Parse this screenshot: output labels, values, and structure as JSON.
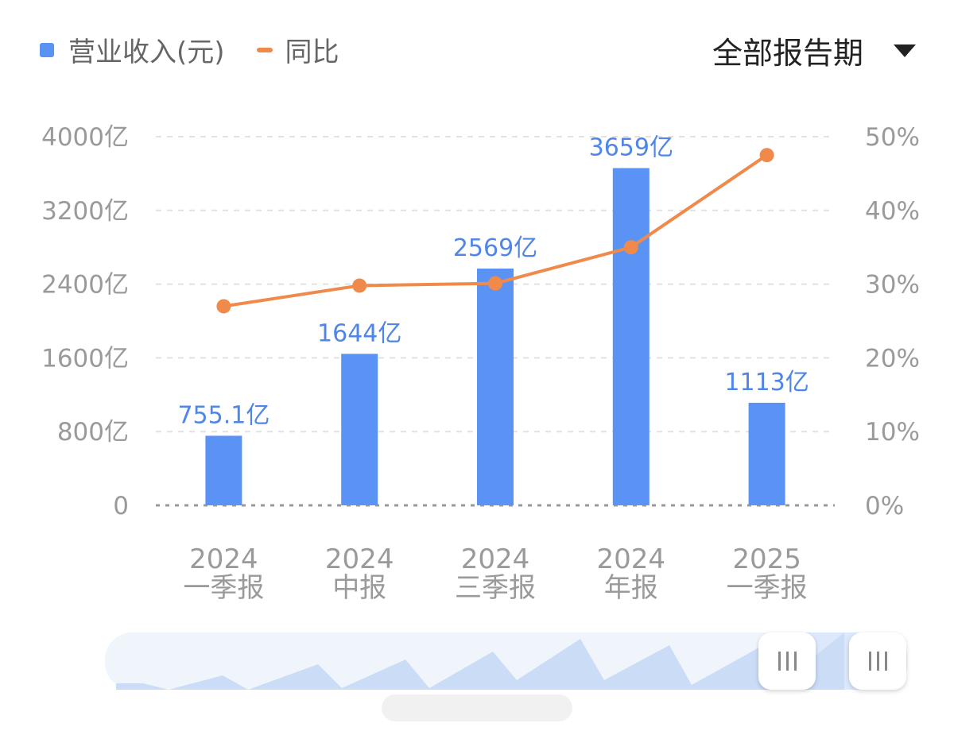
{
  "legend": {
    "bar_label": "营业收入(元)",
    "line_label": "同比",
    "bar_color": "#5b93f5",
    "line_color": "#f08a4b"
  },
  "period_selector": {
    "label": "全部报告期"
  },
  "chart_data": {
    "type": "bar",
    "categories": [
      [
        "2024",
        "一季报"
      ],
      [
        "2024",
        "中报"
      ],
      [
        "2024",
        "三季报"
      ],
      [
        "2024",
        "年报"
      ],
      [
        "2025",
        "一季报"
      ]
    ],
    "series": [
      {
        "name": "营业收入(元)",
        "type": "bar",
        "axis": "left",
        "values": [
          755.1,
          1644,
          2569,
          3659,
          1113
        ],
        "labels": [
          "755.1亿",
          "1644亿",
          "2569亿",
          "3659亿",
          "1113亿"
        ],
        "color": "#5b93f5"
      },
      {
        "name": "同比",
        "type": "line",
        "axis": "right",
        "values": [
          27,
          29.8,
          30.1,
          35,
          47.5
        ],
        "color": "#f08a4b"
      }
    ],
    "y_left": {
      "min": 0,
      "max": 4000,
      "ticks": [
        0,
        800,
        1600,
        2400,
        3200,
        4000
      ],
      "tick_labels": [
        "0",
        "800亿",
        "1600亿",
        "2400亿",
        "3200亿",
        "4000亿"
      ]
    },
    "y_right": {
      "min": 0,
      "max": 50,
      "ticks": [
        0,
        10,
        20,
        30,
        40,
        50
      ],
      "tick_labels": [
        "0%",
        "10%",
        "20%",
        "30%",
        "40%",
        "50%"
      ]
    },
    "grid": true,
    "legend_position": "top-left"
  }
}
